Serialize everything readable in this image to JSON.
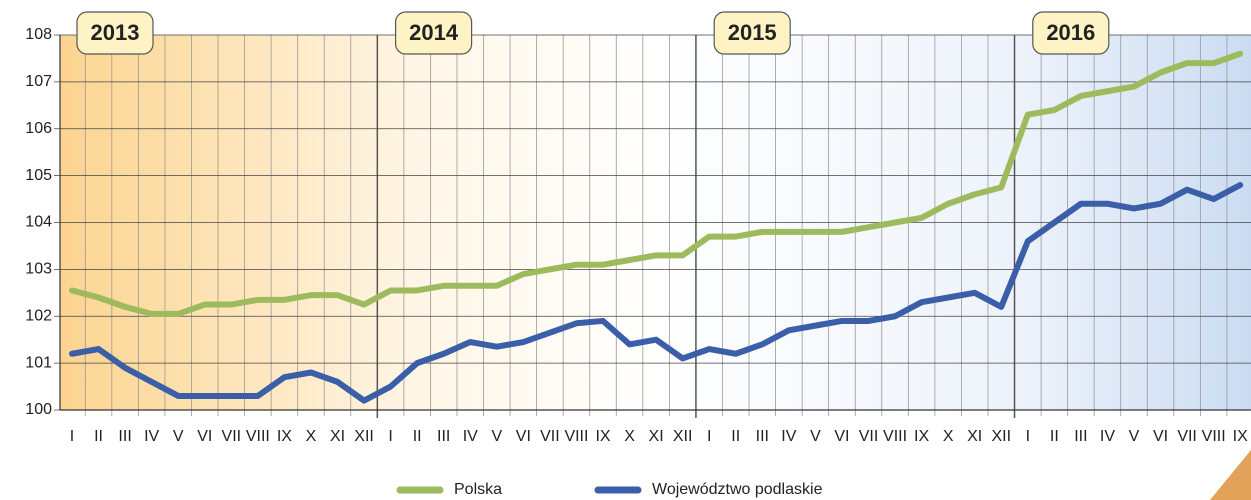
{
  "chart_data": {
    "type": "line",
    "categories": [
      "I",
      "II",
      "III",
      "IV",
      "V",
      "VI",
      "VII",
      "VIII",
      "IX",
      "X",
      "XI",
      "XII",
      "I",
      "II",
      "III",
      "IV",
      "V",
      "VI",
      "VII",
      "VIII",
      "IX",
      "X",
      "XI",
      "XII",
      "I",
      "II",
      "III",
      "IV",
      "V",
      "VI",
      "VII",
      "VIII",
      "IX",
      "X",
      "XI",
      "XII",
      "I",
      "II",
      "III",
      "IV",
      "V",
      "VI",
      "VII",
      "VIII",
      "IX"
    ],
    "year_labels": [
      "2013",
      "2014",
      "2015",
      "2016"
    ],
    "series": [
      {
        "name": "Polska",
        "color": "#9dbb5c",
        "values": [
          102.55,
          102.4,
          102.2,
          102.05,
          102.05,
          102.25,
          102.25,
          102.35,
          102.35,
          102.45,
          102.45,
          102.25,
          102.55,
          102.55,
          102.65,
          102.65,
          102.65,
          102.9,
          103.0,
          103.1,
          103.1,
          103.2,
          103.3,
          103.3,
          103.7,
          103.7,
          103.8,
          103.8,
          103.8,
          103.8,
          103.9,
          104.0,
          104.1,
          104.4,
          104.6,
          104.75,
          106.3,
          106.4,
          106.7,
          106.8,
          106.9,
          107.2,
          107.4,
          107.4,
          107.6
        ]
      },
      {
        "name": "Województwo podlaskie",
        "color": "#3b5ea8",
        "values": [
          101.2,
          101.3,
          100.9,
          100.6,
          100.3,
          100.3,
          100.3,
          100.3,
          100.7,
          100.8,
          100.6,
          100.2,
          100.5,
          101.0,
          101.2,
          101.45,
          101.35,
          101.45,
          101.65,
          101.85,
          101.9,
          101.4,
          101.5,
          101.1,
          101.3,
          101.2,
          101.4,
          101.7,
          101.8,
          101.9,
          101.9,
          102.0,
          102.3,
          102.4,
          102.5,
          102.2,
          103.6,
          104.0,
          104.4,
          104.4,
          104.3,
          104.4,
          104.7,
          104.5,
          104.8
        ]
      }
    ],
    "ylim": [
      100,
      108
    ],
    "yticks": [
      100,
      101,
      102,
      103,
      104,
      105,
      106,
      107,
      108
    ],
    "grid": true
  }
}
